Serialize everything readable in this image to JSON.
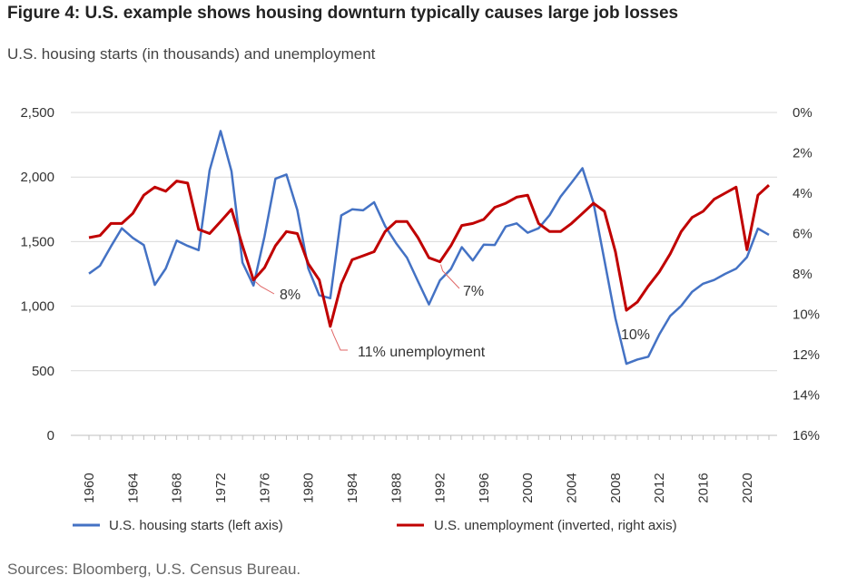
{
  "title": "Figure 4: U.S. example shows housing downturn typically causes large job losses",
  "subtitle": "U.S. housing starts (in thousands) and unemployment",
  "source": "Sources: Bloomberg, U.S. Census Bureau.",
  "colors": {
    "housing": "#4472C4",
    "unemployment": "#C00000",
    "grid": "#d9d9d9",
    "annotation_line": "#e06666"
  },
  "chart_data": {
    "type": "line",
    "x": [
      1960,
      1961,
      1962,
      1963,
      1964,
      1965,
      1966,
      1967,
      1968,
      1969,
      1970,
      1971,
      1972,
      1973,
      1974,
      1975,
      1976,
      1977,
      1978,
      1979,
      1980,
      1981,
      1982,
      1983,
      1984,
      1985,
      1986,
      1987,
      1988,
      1989,
      1990,
      1991,
      1992,
      1993,
      1994,
      1995,
      1996,
      1997,
      1998,
      1999,
      2000,
      2001,
      2002,
      2003,
      2004,
      2005,
      2006,
      2007,
      2008,
      2009,
      2010,
      2011,
      2012,
      2013,
      2014,
      2015,
      2016,
      2017,
      2018,
      2019,
      2020,
      2021,
      2022
    ],
    "series": [
      {
        "name": "U.S. housing starts (left axis)",
        "axis": "left",
        "values": [
          1252,
          1313,
          1463,
          1603,
          1529,
          1473,
          1165,
          1292,
          1508,
          1467,
          1434,
          2052,
          2357,
          2045,
          1338,
          1160,
          1538,
          1987,
          2020,
          1745,
          1292,
          1084,
          1062,
          1703,
          1750,
          1742,
          1805,
          1621,
          1488,
          1376,
          1193,
          1014,
          1200,
          1288,
          1457,
          1354,
          1477,
          1474,
          1617,
          1641,
          1569,
          1603,
          1705,
          1848,
          1956,
          2068,
          1801,
          1355,
          906,
          554,
          587,
          609,
          781,
          925,
          1003,
          1112,
          1174,
          1203,
          1250,
          1290,
          1380,
          1601,
          1553
        ]
      },
      {
        "name": "U.S. unemployment (inverted, right axis)",
        "axis": "right",
        "values": [
          6.2,
          6.1,
          5.5,
          5.5,
          5.0,
          4.1,
          3.7,
          3.9,
          3.4,
          3.5,
          5.8,
          6.0,
          5.4,
          4.8,
          6.6,
          8.3,
          7.7,
          6.6,
          5.9,
          6.0,
          7.5,
          8.3,
          10.6,
          8.5,
          7.3,
          7.1,
          6.9,
          5.9,
          5.4,
          5.4,
          6.2,
          7.2,
          7.4,
          6.6,
          5.6,
          5.5,
          5.3,
          4.7,
          4.5,
          4.2,
          4.1,
          5.5,
          5.9,
          5.9,
          5.5,
          5.0,
          4.5,
          4.9,
          6.9,
          9.8,
          9.4,
          8.6,
          7.9,
          7.0,
          5.9,
          5.2,
          4.9,
          4.3,
          4.0,
          3.7,
          6.8,
          4.1,
          3.6
        ]
      }
    ],
    "xticks": [
      "1960",
      "1964",
      "1968",
      "1972",
      "1976",
      "1980",
      "1984",
      "1988",
      "1992",
      "1996",
      "2000",
      "2004",
      "2008",
      "2012",
      "2016",
      "2020"
    ],
    "y_left": {
      "ticks": [
        "0",
        "500",
        "1,000",
        "1,500",
        "2,000",
        "2,500"
      ],
      "min": 0,
      "max": 2500
    },
    "y_right": {
      "ticks": [
        "0%",
        "2%",
        "4%",
        "6%",
        "8%",
        "10%",
        "12%",
        "14%",
        "16%"
      ],
      "min": 0,
      "max": 16,
      "inverted": true
    },
    "grid": true,
    "legend": "bottom",
    "annotations": [
      {
        "text": "8%",
        "year": 1975,
        "value": 8.3
      },
      {
        "text": "11% unemployment",
        "year": 1982,
        "value": 10.6
      },
      {
        "text": "7%",
        "year": 1992,
        "value": 7.4
      },
      {
        "text": "10%",
        "year": 2009,
        "value": 9.8
      }
    ]
  }
}
